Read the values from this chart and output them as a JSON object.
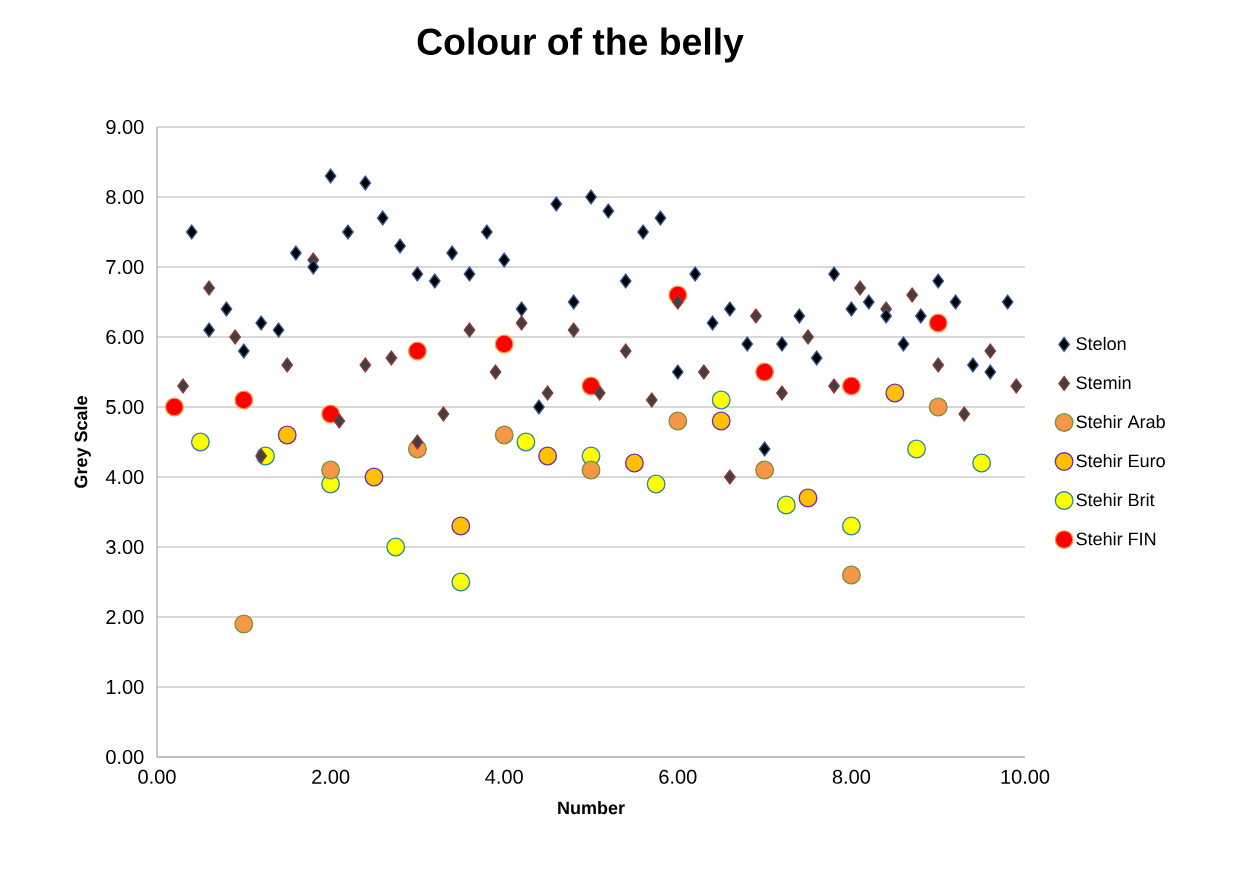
{
  "chart_data": {
    "type": "scatter",
    "title": "Colour of the belly",
    "xlabel": "Number",
    "ylabel": "Grey Scale",
    "xlim": [
      0,
      10
    ],
    "ylim": [
      0,
      9
    ],
    "xticks": [
      {
        "value": 0,
        "label": "0.00"
      },
      {
        "value": 2,
        "label": "2.00"
      },
      {
        "value": 4,
        "label": "4.00"
      },
      {
        "value": 6,
        "label": "6.00"
      },
      {
        "value": 8,
        "label": "8.00"
      },
      {
        "value": 10,
        "label": "10.00"
      }
    ],
    "yticks": [
      {
        "value": 0,
        "label": "0.00"
      },
      {
        "value": 1,
        "label": "1.00"
      },
      {
        "value": 2,
        "label": "2.00"
      },
      {
        "value": 3,
        "label": "3.00"
      },
      {
        "value": 4,
        "label": "4.00"
      },
      {
        "value": 5,
        "label": "5.00"
      },
      {
        "value": 6,
        "label": "6.00"
      },
      {
        "value": 7,
        "label": "7.00"
      },
      {
        "value": 8,
        "label": "8.00"
      },
      {
        "value": 9,
        "label": "9.00"
      }
    ],
    "grid": "y",
    "legend": "right",
    "series": [
      {
        "name": "Stelon",
        "color": "#000000",
        "marker": "diamond",
        "x": [
          0.4,
          0.6,
          0.8,
          1.0,
          1.2,
          1.4,
          1.6,
          1.8,
          2.0,
          2.2,
          2.4,
          2.6,
          2.8,
          3.0,
          3.2,
          3.4,
          3.6,
          3.8,
          4.0,
          4.2,
          4.4,
          4.6,
          4.8,
          5.0,
          5.2,
          5.4,
          5.6,
          5.8,
          6.0,
          6.2,
          6.4,
          6.6,
          6.8,
          7.0,
          7.2,
          7.4,
          7.6,
          7.8,
          8.0,
          8.2,
          8.4,
          8.6,
          8.8,
          9.0,
          9.2,
          9.4,
          9.6,
          9.8
        ],
        "values": [
          7.5,
          6.1,
          6.4,
          5.8,
          6.2,
          6.1,
          7.2,
          7.0,
          8.3,
          7.5,
          8.2,
          7.7,
          7.3,
          6.9,
          6.8,
          7.2,
          6.9,
          7.5,
          7.1,
          6.4,
          5.0,
          7.9,
          6.5,
          8.0,
          7.8,
          6.8,
          7.5,
          7.7,
          5.5,
          6.9,
          6.2,
          6.4,
          5.9,
          4.4,
          5.9,
          6.3,
          5.7,
          6.9,
          6.4,
          6.5,
          6.3,
          5.9,
          6.3,
          6.8,
          6.5,
          5.6,
          5.5,
          6.5
        ]
      },
      {
        "name": "Stemin",
        "color": "#404040",
        "marker": "diamond",
        "x": [
          0.3,
          0.6,
          0.9,
          1.2,
          1.5,
          1.8,
          2.1,
          2.4,
          2.7,
          3.0,
          3.3,
          3.6,
          3.9,
          4.2,
          4.5,
          4.8,
          5.1,
          5.4,
          5.7,
          6.0,
          6.3,
          6.6,
          6.9,
          7.2,
          7.5,
          7.8,
          8.1,
          8.4,
          8.7,
          9.0,
          9.3,
          9.6,
          9.9
        ],
        "values": [
          5.3,
          6.7,
          6.0,
          4.3,
          5.6,
          7.1,
          4.8,
          5.6,
          5.7,
          4.5,
          4.9,
          6.1,
          5.5,
          6.2,
          5.2,
          6.1,
          5.2,
          5.8,
          5.1,
          6.5,
          5.5,
          4.0,
          6.3,
          5.2,
          6.0,
          5.3,
          6.7,
          6.4,
          6.6,
          5.6,
          4.9,
          5.8,
          5.3
        ]
      },
      {
        "name": "Stehir Arab",
        "color": "#f79646",
        "marker": "circle",
        "x": [
          1,
          2,
          3,
          4,
          5,
          6,
          7,
          8,
          9
        ],
        "values": [
          1.9,
          4.1,
          4.4,
          4.6,
          4.1,
          4.8,
          4.1,
          2.6,
          5.0
        ]
      },
      {
        "name": "Stehir Euro",
        "color": "#ffc000",
        "marker": "circle",
        "x": [
          1.5,
          2.5,
          3.5,
          4.5,
          5.5,
          6.5,
          7.5,
          8.5
        ],
        "values": [
          4.6,
          4.0,
          3.3,
          4.3,
          4.2,
          4.8,
          3.7,
          5.2
        ]
      },
      {
        "name": "Stehir Brit",
        "color": "#ffff00",
        "marker": "circle",
        "x": [
          0.5,
          1.25,
          2.0,
          2.75,
          3.5,
          4.25,
          5.0,
          5.75,
          6.5,
          7.25,
          8.0,
          8.75,
          9.5
        ],
        "values": [
          4.5,
          4.3,
          3.9,
          3.0,
          2.5,
          4.5,
          4.3,
          3.9,
          5.1,
          3.6,
          3.3,
          4.4,
          4.2
        ]
      },
      {
        "name": "Stehir FIN",
        "color": "#ff0000",
        "marker": "circle",
        "x": [
          0.2,
          1,
          2,
          3,
          4,
          5,
          6,
          7,
          8,
          9
        ],
        "values": [
          5.0,
          5.1,
          4.9,
          5.8,
          5.9,
          5.3,
          6.6,
          5.5,
          5.3,
          6.2
        ]
      }
    ]
  }
}
